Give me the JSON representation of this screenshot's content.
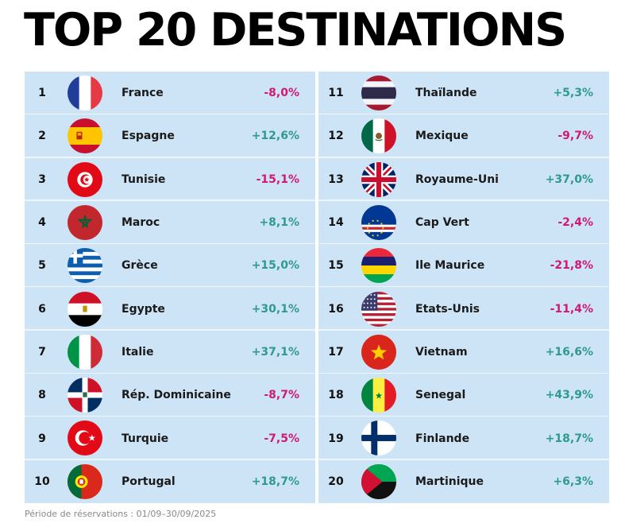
{
  "title": "TOP 20 DESTINATIONS",
  "footnote": "Période de réservations : 01/09–30/09/2025",
  "colors": {
    "positive": "#2e9a8c",
    "negative": "#d11a6f",
    "background": "#cde4f6"
  },
  "chart_data": {
    "type": "table",
    "title": "TOP 20 DESTINATIONS",
    "rows": [
      {
        "rank": "1",
        "country": "France",
        "change": "-8,0%",
        "value": -8.0,
        "flag": "france-flag"
      },
      {
        "rank": "2",
        "country": "Espagne",
        "change": "+12,6%",
        "value": 12.6,
        "flag": "spain-flag"
      },
      {
        "rank": "3",
        "country": "Tunisie",
        "change": "-15,1%",
        "value": -15.1,
        "flag": "tunisia-flag"
      },
      {
        "rank": "4",
        "country": "Maroc",
        "change": "+8,1%",
        "value": 8.1,
        "flag": "morocco-flag"
      },
      {
        "rank": "5",
        "country": "Grèce",
        "change": "+15,0%",
        "value": 15.0,
        "flag": "greece-flag"
      },
      {
        "rank": "6",
        "country": "Egypte",
        "change": "+30,1%",
        "value": 30.1,
        "flag": "egypt-flag"
      },
      {
        "rank": "7",
        "country": "Italie",
        "change": "+37,1%",
        "value": 37.1,
        "flag": "italy-flag"
      },
      {
        "rank": "8",
        "country": "Rép. Dominicaine",
        "change": "-8,7%",
        "value": -8.7,
        "flag": "dominican-republic-flag"
      },
      {
        "rank": "9",
        "country": "Turquie",
        "change": "-7,5%",
        "value": -7.5,
        "flag": "turkey-flag"
      },
      {
        "rank": "10",
        "country": "Portugal",
        "change": "+18,7%",
        "value": 18.7,
        "flag": "portugal-flag"
      },
      {
        "rank": "11",
        "country": "Thaïlande",
        "change": "+5,3%",
        "value": 5.3,
        "flag": "thailand-flag"
      },
      {
        "rank": "12",
        "country": "Mexique",
        "change": "-9,7%",
        "value": -9.7,
        "flag": "mexico-flag"
      },
      {
        "rank": "13",
        "country": "Royaume-Uni",
        "change": "+37,0%",
        "value": 37.0,
        "flag": "uk-flag"
      },
      {
        "rank": "14",
        "country": "Cap Vert",
        "change": "-2,4%",
        "value": -2.4,
        "flag": "cape-verde-flag"
      },
      {
        "rank": "15",
        "country": "Ile Maurice",
        "change": "-21,8%",
        "value": -21.8,
        "flag": "mauritius-flag"
      },
      {
        "rank": "16",
        "country": "Etats-Unis",
        "change": "-11,4%",
        "value": -11.4,
        "flag": "usa-flag"
      },
      {
        "rank": "17",
        "country": "Vietnam",
        "change": "+16,6%",
        "value": 16.6,
        "flag": "vietnam-flag"
      },
      {
        "rank": "18",
        "country": "Senegal",
        "change": "+43,9%",
        "value": 43.9,
        "flag": "senegal-flag"
      },
      {
        "rank": "19",
        "country": "Finlande",
        "change": "+18,7%",
        "value": 18.7,
        "flag": "finland-flag"
      },
      {
        "rank": "20",
        "country": "Martinique",
        "change": "+6,3%",
        "value": 6.3,
        "flag": "martinique-flag"
      }
    ]
  }
}
